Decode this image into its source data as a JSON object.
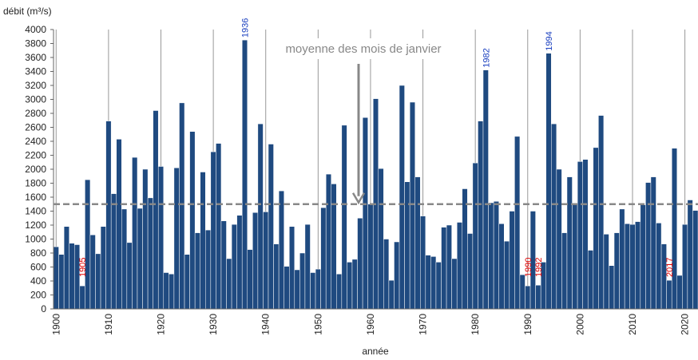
{
  "chart_data": {
    "type": "bar",
    "y_label": "débit (m³/s)",
    "x_label": "année",
    "color": "#1f4a80",
    "x": [
      1900,
      1901,
      1902,
      1903,
      1904,
      1905,
      1906,
      1907,
      1908,
      1909,
      1910,
      1911,
      1912,
      1913,
      1914,
      1915,
      1916,
      1917,
      1918,
      1919,
      1920,
      1921,
      1922,
      1923,
      1924,
      1925,
      1926,
      1927,
      1928,
      1929,
      1930,
      1931,
      1932,
      1933,
      1934,
      1935,
      1936,
      1937,
      1938,
      1939,
      1940,
      1941,
      1942,
      1943,
      1944,
      1945,
      1946,
      1947,
      1948,
      1949,
      1950,
      1951,
      1952,
      1953,
      1954,
      1955,
      1956,
      1957,
      1958,
      1959,
      1960,
      1961,
      1962,
      1963,
      1964,
      1965,
      1966,
      1967,
      1968,
      1969,
      1970,
      1971,
      1972,
      1973,
      1974,
      1975,
      1976,
      1977,
      1978,
      1979,
      1980,
      1981,
      1982,
      1983,
      1984,
      1985,
      1986,
      1987,
      1988,
      1989,
      1990,
      1991,
      1992,
      1993,
      1994,
      1995,
      1996,
      1997,
      1998,
      1999,
      2000,
      2001,
      2002,
      2003,
      2004,
      2005,
      2006,
      2007,
      2008,
      2009,
      2010,
      2011,
      2012,
      2013,
      2014,
      2015,
      2016,
      2017,
      2018,
      2019,
      2020,
      2021,
      2022
    ],
    "values": [
      890,
      780,
      1180,
      940,
      920,
      330,
      1850,
      1060,
      790,
      1180,
      2690,
      1650,
      2430,
      1430,
      950,
      2170,
      1440,
      2000,
      1590,
      2840,
      2040,
      520,
      500,
      2020,
      2950,
      780,
      2540,
      1090,
      1960,
      1130,
      2250,
      2370,
      1260,
      720,
      1210,
      1340,
      3850,
      850,
      1380,
      2650,
      1390,
      2360,
      930,
      1690,
      610,
      1180,
      560,
      800,
      1210,
      520,
      570,
      1450,
      1930,
      1790,
      500,
      2630,
      670,
      710,
      1300,
      2740,
      1500,
      3010,
      2010,
      1000,
      410,
      960,
      3200,
      1820,
      2960,
      1890,
      1330,
      770,
      750,
      670,
      1170,
      1200,
      720,
      1240,
      1720,
      1080,
      2090,
      2690,
      3420,
      1520,
      1540,
      1220,
      970,
      1400,
      2470,
      490,
      330,
      1400,
      340,
      670,
      3660,
      2650,
      2000,
      1090,
      1890,
      1500,
      2110,
      2140,
      840,
      2310,
      2770,
      1070,
      620,
      1090,
      1430,
      1220,
      1210,
      1250,
      1490,
      1810,
      1890,
      1230,
      930,
      410,
      2300,
      480,
      1210,
      1560,
      1410
    ],
    "xlim": [
      1899.5,
      2022.5
    ],
    "xticks": [
      1900,
      1910,
      1920,
      1930,
      1940,
      1950,
      1960,
      1970,
      1980,
      1990,
      2000,
      2010,
      2020
    ],
    "ylim": [
      0,
      4000
    ],
    "yticks": [
      0,
      200,
      400,
      600,
      800,
      1000,
      1200,
      1400,
      1600,
      1800,
      2000,
      2200,
      2400,
      2600,
      2800,
      3000,
      3200,
      3400,
      3600,
      3800,
      4000
    ],
    "grid": "x",
    "mean": {
      "value": 1500,
      "label": "moyenne des mois de janvier"
    },
    "annotations": [
      {
        "text": "1936",
        "year": 1936,
        "color": "#1a3fbf",
        "place": "above"
      },
      {
        "text": "1982",
        "year": 1982,
        "color": "#1a3fbf",
        "place": "above"
      },
      {
        "text": "1994",
        "year": 1994,
        "color": "#1a3fbf",
        "place": "above"
      },
      {
        "text": "1905",
        "year": 1905,
        "color": "#e00000",
        "place": "inside"
      },
      {
        "text": "1990",
        "year": 1990,
        "color": "#e00000",
        "place": "inside"
      },
      {
        "text": "1992",
        "year": 1992,
        "color": "#e00000",
        "place": "inside"
      },
      {
        "text": "2017",
        "year": 2017,
        "color": "#e00000",
        "place": "inside"
      }
    ]
  }
}
